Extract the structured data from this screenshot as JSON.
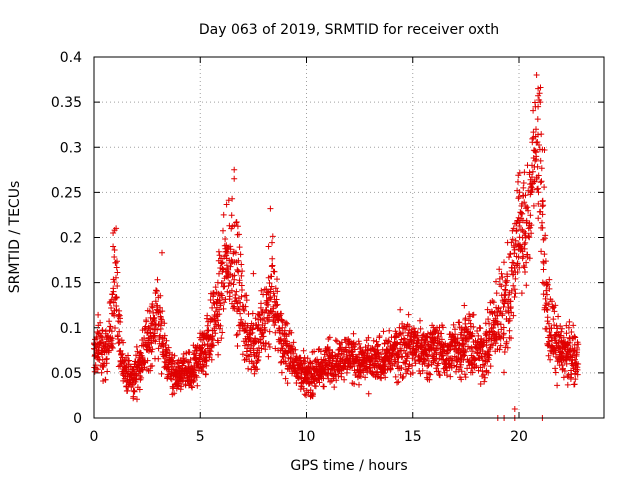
{
  "chart_data": {
    "type": "scatter",
    "title": "Day 063 of 2019, SRMTID for receiver oxth",
    "xlabel": "GPS time / hours",
    "ylabel": "SRMTID / TECUs",
    "xlim": [
      0,
      24
    ],
    "ylim": [
      0,
      0.4
    ],
    "xticks": [
      0,
      5,
      10,
      15,
      20
    ],
    "xtick_labels": [
      "0",
      "5",
      "10",
      "15",
      "20"
    ],
    "yticks": [
      0,
      0.05,
      0.1,
      0.15,
      0.2,
      0.25,
      0.3,
      0.35,
      0.4
    ],
    "ytick_labels": [
      "0",
      "0.05",
      "0.1",
      "0.15",
      "0.2",
      "0.25",
      "0.3",
      "0.35",
      "0.4"
    ],
    "grid": true,
    "marker": "plus",
    "color": "#e00000",
    "series": [
      {
        "name": "SRMTID",
        "profile": [
          [
            0.0,
            0.07,
            0.025
          ],
          [
            0.3,
            0.08,
            0.03
          ],
          [
            0.5,
            0.065,
            0.02
          ],
          [
            0.8,
            0.1,
            0.03
          ],
          [
            1.0,
            0.15,
            0.05
          ],
          [
            1.2,
            0.08,
            0.03
          ],
          [
            1.5,
            0.05,
            0.015
          ],
          [
            1.8,
            0.04,
            0.015
          ],
          [
            2.0,
            0.05,
            0.02
          ],
          [
            2.3,
            0.07,
            0.02
          ],
          [
            2.6,
            0.09,
            0.03
          ],
          [
            2.8,
            0.1,
            0.03
          ],
          [
            3.0,
            0.12,
            0.04
          ],
          [
            3.2,
            0.08,
            0.03
          ],
          [
            3.5,
            0.06,
            0.02
          ],
          [
            3.8,
            0.045,
            0.015
          ],
          [
            4.2,
            0.05,
            0.015
          ],
          [
            4.6,
            0.05,
            0.02
          ],
          [
            5.0,
            0.07,
            0.02
          ],
          [
            5.4,
            0.09,
            0.03
          ],
          [
            5.8,
            0.12,
            0.04
          ],
          [
            6.1,
            0.15,
            0.05
          ],
          [
            6.5,
            0.18,
            0.05
          ],
          [
            6.8,
            0.14,
            0.05
          ],
          [
            7.2,
            0.09,
            0.03
          ],
          [
            7.6,
            0.08,
            0.03
          ],
          [
            8.0,
            0.1,
            0.04
          ],
          [
            8.4,
            0.14,
            0.05
          ],
          [
            8.8,
            0.09,
            0.03
          ],
          [
            9.2,
            0.07,
            0.02
          ],
          [
            9.6,
            0.06,
            0.02
          ],
          [
            10.0,
            0.045,
            0.015
          ],
          [
            10.5,
            0.05,
            0.02
          ],
          [
            11.0,
            0.06,
            0.02
          ],
          [
            11.5,
            0.065,
            0.02
          ],
          [
            12.0,
            0.07,
            0.02
          ],
          [
            12.5,
            0.06,
            0.02
          ],
          [
            13.0,
            0.06,
            0.02
          ],
          [
            13.5,
            0.065,
            0.02
          ],
          [
            14.0,
            0.07,
            0.02
          ],
          [
            14.5,
            0.08,
            0.03
          ],
          [
            15.0,
            0.08,
            0.025
          ],
          [
            15.5,
            0.075,
            0.02
          ],
          [
            16.0,
            0.08,
            0.025
          ],
          [
            16.5,
            0.07,
            0.02
          ],
          [
            17.0,
            0.075,
            0.025
          ],
          [
            17.5,
            0.09,
            0.03
          ],
          [
            18.0,
            0.07,
            0.025
          ],
          [
            18.5,
            0.08,
            0.03
          ],
          [
            19.0,
            0.11,
            0.04
          ],
          [
            19.5,
            0.13,
            0.05
          ],
          [
            19.8,
            0.18,
            0.05
          ],
          [
            20.0,
            0.22,
            0.05
          ],
          [
            20.3,
            0.2,
            0.05
          ],
          [
            20.6,
            0.25,
            0.06
          ],
          [
            20.8,
            0.3,
            0.05
          ],
          [
            21.0,
            0.28,
            0.07
          ],
          [
            21.3,
            0.12,
            0.04
          ],
          [
            21.6,
            0.09,
            0.03
          ],
          [
            22.0,
            0.075,
            0.025
          ],
          [
            22.4,
            0.07,
            0.025
          ],
          [
            22.8,
            0.065,
            0.02
          ]
        ],
        "highlights": [
          [
            0.9,
            0.205
          ],
          [
            0.9,
            0.19
          ],
          [
            3.2,
            0.183
          ],
          [
            6.6,
            0.275
          ],
          [
            6.6,
            0.265
          ],
          [
            6.5,
            0.243
          ],
          [
            8.3,
            0.232
          ],
          [
            7.5,
            0.16
          ],
          [
            20.9,
            0.365
          ],
          [
            20.9,
            0.357
          ],
          [
            21.0,
            0.35
          ],
          [
            20.9,
            0.345
          ],
          [
            20.8,
            0.32
          ],
          [
            21.2,
            0.297
          ],
          [
            20.4,
            0.28
          ],
          [
            20.5,
            0.272
          ],
          [
            20.2,
            0.255
          ],
          [
            20.0,
            0.245
          ],
          [
            21.1,
            0.24
          ],
          [
            20.6,
            0.255
          ],
          [
            20.7,
            0.235
          ],
          [
            19.8,
            0.01
          ],
          [
            19.0,
            0.0
          ],
          [
            19.3,
            0.0
          ],
          [
            19.8,
            0.0
          ],
          [
            21.1,
            0.0
          ]
        ]
      }
    ]
  }
}
